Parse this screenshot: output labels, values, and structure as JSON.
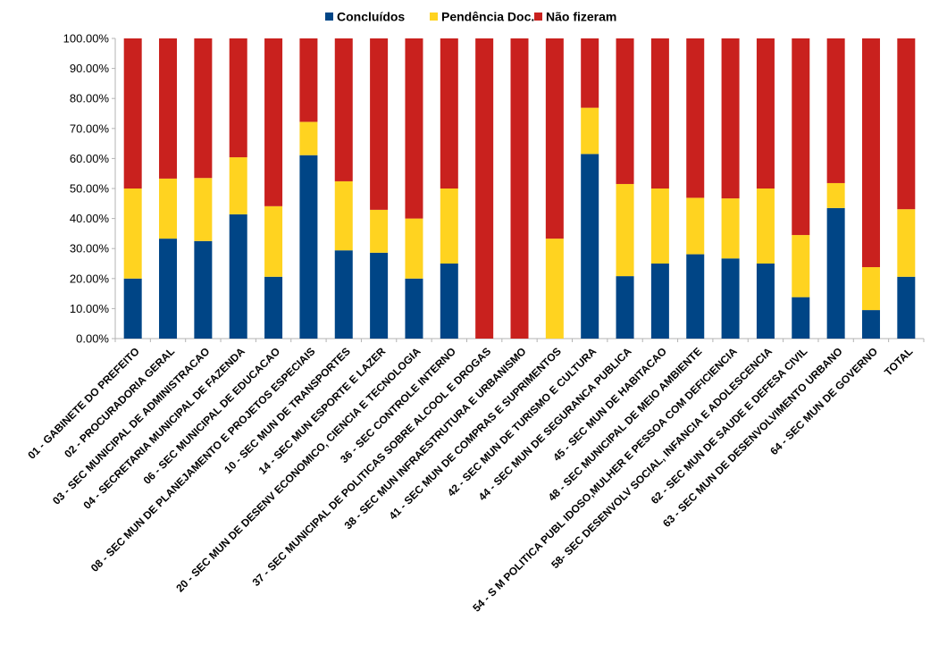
{
  "chart_data": {
    "type": "bar",
    "stacked": true,
    "percent_stacked": true,
    "ylim": [
      0,
      100
    ],
    "yticks": [
      "0.00%",
      "10.00%",
      "20.00%",
      "30.00%",
      "40.00%",
      "50.00%",
      "60.00%",
      "70.00%",
      "80.00%",
      "90.00%",
      "100.00%"
    ],
    "grid": false,
    "legend_position": "top",
    "categories": [
      "01 - GABINETE DO PREFEITO",
      "02 - PROCURADORIA GERAL",
      "03 - SEC MUNICIPAL DE ADMINISTRACAO",
      "04 - SECRETARIA MUNICIPAL DE FAZENDA",
      "06 - SEC MUNICIPAL DE EDUCACAO",
      "08 - SEC MUN DE PLANEJAMENTO E PROJETOS ESPECIAIS",
      "10 - SEC MUN DE TRANSPORTES",
      "14 - SEC MUN ESPORTE E LAZER",
      "20 - SEC MUN DE DESENV ECONOMICO, CIENCIA E TECNOLOGIA",
      "36 - SEC CONTROLE INTERNO",
      "37 - SEC MUNICIPAL DE POLITICAS SOBRE ALCOOL E DROGAS",
      "38 - SEC MUN INFRAESTRUTURA E URBANISMO",
      "41 - SEC MUN DE COMPRAS E SUPRIMENTOS",
      "42 - SEC MUN DE TURISMO E CULTURA",
      "44 - SEC MUN DE SEGURANCA PUBLICA",
      "45 - SEC MUN DE HABITACAO",
      "48 - SEC MUNICIPAL DE MEIO AMBIENTE",
      "54 - S M POLITICA PUBL IDOSO,MULHER E PESSOA COM DEFICIENCIA",
      "58- SEC DESENVOLV SOCIAL, INFANCIA E ADOLESCENCIA",
      "62 - SEC MUN DE SAUDE E DEFESA CIVIL",
      "63 - SEC MUN DE DESENVOLVIMENTO URBANO",
      "64 - SEC MUN DE GOVERNO",
      "TOTAL"
    ],
    "series": [
      {
        "name": "Concluídos",
        "color": "#004586",
        "values": [
          20,
          33.3,
          32.5,
          41.4,
          20.6,
          61.1,
          29.4,
          28.6,
          20,
          25,
          0,
          0,
          0,
          61.5,
          20.8,
          25,
          28.1,
          26.7,
          25,
          13.8,
          43.5,
          9.5,
          20.6
        ]
      },
      {
        "name": "Pendência Doc.",
        "color": "#ffd320",
        "values": [
          30,
          20,
          21,
          19,
          23.5,
          11.1,
          23,
          14.3,
          20,
          25,
          0,
          0,
          33.3,
          15.4,
          30.7,
          25,
          18.8,
          20,
          25,
          20.7,
          8.3,
          14.3,
          22.5
        ]
      },
      {
        "name": "Não fizeram",
        "color": "#c9211e",
        "values": [
          50,
          46.7,
          46.5,
          39.6,
          55.9,
          27.8,
          47.6,
          57.1,
          60,
          50,
          100,
          100,
          66.7,
          23.1,
          48.5,
          50,
          53.1,
          53.3,
          50,
          65.5,
          48.2,
          76.2,
          56.9
        ]
      }
    ]
  }
}
